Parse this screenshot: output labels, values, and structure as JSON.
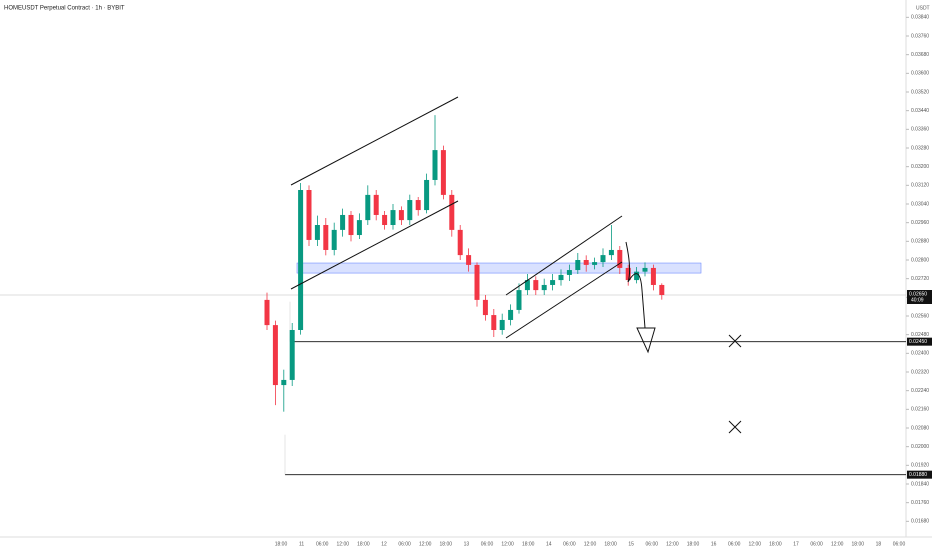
{
  "chart_data": {
    "type": "candlestick",
    "title": "HOMEUSDT Perpetual Contract · 1h · BYBIT",
    "currency": "USDT",
    "up_color": "#089981",
    "down_color": "#f23645",
    "first_open": 0.02629,
    "close": [
      0.02521,
      0.02264,
      0.02286,
      0.025,
      0.031,
      0.02886,
      0.0295,
      0.02843,
      0.02929,
      0.02993,
      0.02907,
      0.02971,
      0.03079,
      0.02993,
      0.0295,
      0.03014,
      0.02971,
      0.03057,
      0.03014,
      0.03143,
      0.03271,
      0.03079,
      0.02929,
      0.02821,
      0.02779,
      0.02629,
      0.02564,
      0.025,
      0.02543,
      0.02586,
      0.02671,
      0.02714,
      0.02671,
      0.02693,
      0.02714,
      0.02736,
      0.02757,
      0.028,
      0.02779,
      0.02791,
      0.02821,
      0.02843,
      0.02766,
      0.02714,
      0.0275,
      0.02766,
      0.02693,
      0.0265
    ],
    "high": [
      0.0266,
      0.0254,
      0.0233,
      0.0253,
      0.0313,
      0.0312,
      0.0299,
      0.0298,
      0.0296,
      0.0302,
      0.0301,
      0.03,
      0.0312,
      0.031,
      0.0301,
      0.0304,
      0.0303,
      0.0308,
      0.0307,
      0.0317,
      0.03421,
      0.0329,
      0.031,
      0.0295,
      0.0285,
      0.0279,
      0.0265,
      0.0259,
      0.0257,
      0.0261,
      0.027,
      0.0274,
      0.0273,
      0.0272,
      0.0274,
      0.0276,
      0.0278,
      0.0283,
      0.0282,
      0.0281,
      0.0285,
      0.0295,
      0.0286,
      0.0278,
      0.0277,
      0.0279,
      0.0278,
      0.027
    ],
    "low": [
      0.025,
      0.02178,
      0.0215,
      0.0226,
      0.0248,
      0.0286,
      0.0286,
      0.0282,
      0.0282,
      0.029,
      0.0288,
      0.0289,
      0.0295,
      0.0297,
      0.0293,
      0.0293,
      0.0295,
      0.0295,
      0.0299,
      0.03,
      0.0312,
      0.0306,
      0.029,
      0.028,
      0.0275,
      0.026,
      0.0254,
      0.0247,
      0.0248,
      0.0252,
      0.0257,
      0.0265,
      0.0265,
      0.0265,
      0.0267,
      0.0269,
      0.0271,
      0.0274,
      0.0275,
      0.0276,
      0.0277,
      0.028,
      0.0274,
      0.0269,
      0.027,
      0.0273,
      0.0267,
      0.0263
    ],
    "ylim": [
      0.016,
      0.0388
    ],
    "yticks": [
      {
        "value": 0.0168,
        "label": "0.01680"
      },
      {
        "value": 0.0176,
        "label": "0.01760"
      },
      {
        "value": 0.0184,
        "label": "0.01840"
      },
      {
        "value": 0.0192,
        "label": "0.01920"
      },
      {
        "value": 0.02,
        "label": "0.02000"
      },
      {
        "value": 0.0208,
        "label": "0.02080"
      },
      {
        "value": 0.0216,
        "label": "0.02160"
      },
      {
        "value": 0.0224,
        "label": "0.02240"
      },
      {
        "value": 0.0232,
        "label": "0.02320"
      },
      {
        "value": 0.024,
        "label": "0.02400"
      },
      {
        "value": 0.0248,
        "label": "0.02480"
      },
      {
        "value": 0.0256,
        "label": "0.02560"
      },
      {
        "value": 0.0264,
        "label": "0.02640"
      },
      {
        "value": 0.0272,
        "label": "0.02720"
      },
      {
        "value": 0.028,
        "label": "0.02800"
      },
      {
        "value": 0.0288,
        "label": "0.02880"
      },
      {
        "value": 0.0296,
        "label": "0.02960"
      },
      {
        "value": 0.0304,
        "label": "0.03040"
      },
      {
        "value": 0.0312,
        "label": "0.03120"
      },
      {
        "value": 0.032,
        "label": "0.03200"
      },
      {
        "value": 0.0328,
        "label": "0.03280"
      },
      {
        "value": 0.0336,
        "label": "0.03360"
      },
      {
        "value": 0.0344,
        "label": "0.03440"
      },
      {
        "value": 0.0352,
        "label": "0.03520"
      },
      {
        "value": 0.036,
        "label": "0.03600"
      },
      {
        "value": 0.0368,
        "label": "0.03680"
      },
      {
        "value": 0.0376,
        "label": "0.03760"
      },
      {
        "value": 0.0384,
        "label": "0.03840"
      }
    ],
    "x_labels": [
      "18:00",
      "11",
      "06:00",
      "12:00",
      "18:00",
      "12",
      "06:00",
      "12:00",
      "18:00",
      "13",
      "06:00",
      "12:00",
      "18:00",
      "14",
      "06:00",
      "12:00",
      "18:00",
      "15",
      "06:00",
      "12:00",
      "18:00",
      "16",
      "06:00",
      "12:00",
      "18:00",
      "17",
      "06:00",
      "12:00",
      "18:00",
      "18",
      "06:00"
    ],
    "zone": [
      0.02744,
      0.02787
    ],
    "levels": [
      {
        "value": 0.0245,
        "label": "0.02450"
      },
      {
        "value": 0.0188,
        "label": "0.01880"
      }
    ],
    "last_price": {
      "value": 0.0265,
      "label": "0.02650"
    },
    "countdown": "40:09"
  }
}
